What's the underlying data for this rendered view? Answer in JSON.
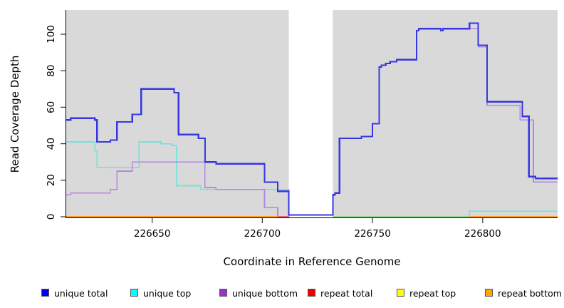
{
  "axes": {
    "xlabel": "Coordinate in Reference Genome",
    "ylabel": "Read Coverage Depth"
  },
  "legend": {
    "items": [
      {
        "label": "unique total",
        "color": "#0000f0"
      },
      {
        "label": "unique top",
        "color": "#00ffff"
      },
      {
        "label": "unique bottom",
        "color": "#9932cc"
      },
      {
        "label": "repeat total",
        "color": "#ee0000"
      },
      {
        "label": "repeat top",
        "color": "#ffff00"
      },
      {
        "label": "repeat bottom",
        "color": "#ffa500"
      }
    ]
  },
  "chart_data": {
    "type": "line",
    "title": "",
    "xlabel": "Coordinate in Reference Genome",
    "ylabel": "Read Coverage Depth",
    "xlim": [
      226611,
      226834
    ],
    "ylim": [
      0,
      113
    ],
    "x_ticks": [
      226650,
      226700,
      226750,
      226800
    ],
    "y_ticks": [
      0,
      20,
      40,
      60,
      80,
      100
    ],
    "plot_bg": "#d9d9d9",
    "gap_region": {
      "x1": 226712,
      "x2": 226732
    },
    "series": [
      {
        "name": "unique total",
        "line_color": "#3737e2",
        "line_width": 2.2,
        "segments": [
          {
            "pts": [
              [
                226611,
                53
              ],
              [
                226613,
                54
              ],
              [
                226624,
                53
              ],
              [
                226625,
                41
              ],
              [
                226631,
                42
              ],
              [
                226634,
                52
              ],
              [
                226641,
                56
              ],
              [
                226645,
                70
              ],
              [
                226660,
                68
              ],
              [
                226662,
                45
              ],
              [
                226671,
                43
              ],
              [
                226674,
                30
              ],
              [
                226679,
                29
              ],
              [
                226701,
                19
              ],
              [
                226707,
                14
              ],
              [
                226712,
                1
              ],
              [
                226732,
                12
              ],
              [
                226733,
                13
              ],
              [
                226735,
                43
              ],
              [
                226745,
                44
              ],
              [
                226750,
                51
              ],
              [
                226753,
                82
              ],
              [
                226754,
                83
              ],
              [
                226756,
                84
              ],
              [
                226758,
                85
              ],
              [
                226761,
                86
              ],
              [
                226770,
                102
              ],
              [
                226771,
                103
              ],
              [
                226781,
                102
              ],
              [
                226782,
                103
              ],
              [
                226794,
                106
              ],
              [
                226798,
                94
              ],
              [
                226802,
                63
              ],
              [
                226818,
                55
              ],
              [
                226821,
                22
              ],
              [
                226824,
                21
              ]
            ],
            "end": 226834
          }
        ]
      },
      {
        "name": "unique top",
        "line_color": "#6ee4db",
        "line_width": 1.6,
        "segments": [
          {
            "pts": [
              [
                226611,
                41
              ],
              [
                226624,
                36
              ],
              [
                226625,
                27
              ],
              [
                226644,
                41
              ],
              [
                226654,
                40
              ],
              [
                226659,
                39
              ],
              [
                226661,
                17
              ],
              [
                226672,
                15
              ],
              [
                226712,
                0
              ]
            ],
            "end": 226712
          },
          {
            "pts": [
              [
                226732,
                0
              ],
              [
                226794,
                3
              ]
            ],
            "end": 226834
          }
        ]
      },
      {
        "name": "unique bottom",
        "line_color": "#b886de",
        "line_width": 1.6,
        "segments": [
          {
            "pts": [
              [
                226611,
                12
              ],
              [
                226613,
                13
              ],
              [
                226631,
                15
              ],
              [
                226634,
                25
              ],
              [
                226641,
                30
              ],
              [
                226674,
                16
              ],
              [
                226679,
                15
              ],
              [
                226701,
                5
              ],
              [
                226707,
                0
              ],
              [
                226712,
                1
              ],
              [
                226732,
                12
              ],
              [
                226733,
                13
              ],
              [
                226735,
                43
              ],
              [
                226745,
                44
              ],
              [
                226750,
                51
              ],
              [
                226753,
                82
              ],
              [
                226754,
                83
              ],
              [
                226756,
                84
              ],
              [
                226758,
                85
              ],
              [
                226761,
                86
              ],
              [
                226770,
                102
              ],
              [
                226771,
                103
              ],
              [
                226794,
                103
              ],
              [
                226798,
                93
              ],
              [
                226802,
                61
              ],
              [
                226817,
                53
              ],
              [
                226823,
                19
              ]
            ],
            "end": 226834
          }
        ]
      },
      {
        "name": "repeat total",
        "line_color": "#ee0000",
        "line_width": 1.6,
        "segments": [
          {
            "pts": [
              [
                226611,
                0
              ]
            ],
            "end": 226712
          },
          {
            "pts": [
              [
                226732,
                0
              ]
            ],
            "end": 226834
          }
        ]
      },
      {
        "name": "repeat top",
        "line_color": "#ffff00",
        "line_width": 1.6,
        "segments": [
          {
            "pts": [
              [
                226611,
                0
              ]
            ],
            "end": 226712
          },
          {
            "pts": [
              [
                226732,
                0
              ]
            ],
            "end": 226834
          }
        ]
      },
      {
        "name": "repeat bottom",
        "line_color": "#ff9d26",
        "line_width": 2,
        "segments": [
          {
            "pts": [
              [
                226611,
                0
              ]
            ],
            "end": 226712
          },
          {
            "pts": [
              [
                226732,
                0
              ]
            ],
            "end": 226834
          }
        ]
      }
    ],
    "blend_overlays": [
      {
        "note": "unique-bottom over repeat-bottom at zero",
        "color": "#e8607f",
        "line_width": 2,
        "pts": [
          [
            226707,
            0
          ]
        ],
        "end": 226712
      },
      {
        "note": "unique-top over repeat-bottom at zero",
        "color": "#93d793",
        "line_width": 1.6,
        "pts": [
          [
            226732,
            0
          ]
        ],
        "end": 226794
      }
    ]
  }
}
